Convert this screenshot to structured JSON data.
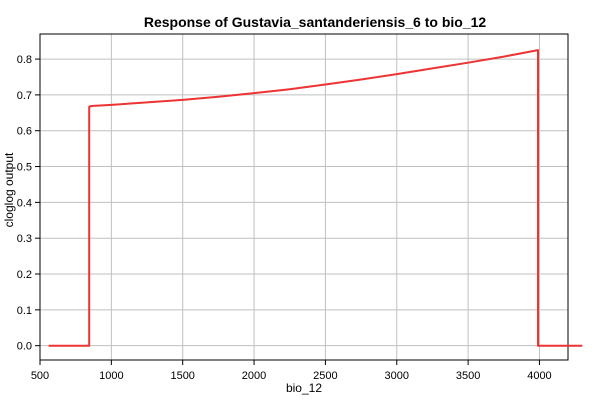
{
  "chart_data": {
    "type": "line",
    "title": "Response of Gustavia_santanderiensis_6 to bio_12",
    "xlabel": "bio_12",
    "ylabel": "cloglog output",
    "xlim": [
      500,
      4200
    ],
    "ylim": [
      -0.04,
      0.87
    ],
    "xticks": [
      500,
      1000,
      1500,
      2000,
      2500,
      3000,
      3500,
      4000
    ],
    "yticks": [
      0.0,
      0.1,
      0.2,
      0.3,
      0.4,
      0.5,
      0.6,
      0.7,
      0.8
    ],
    "grid": true,
    "line_color": "#ee3333",
    "series": [
      {
        "x": [
          560,
          845,
          845,
          860,
          1000,
          1250,
          1500,
          1750,
          2000,
          2250,
          2500,
          2750,
          3000,
          3250,
          3500,
          3750,
          3990,
          3990,
          4300
        ],
        "y": [
          0.0,
          0.0,
          0.667,
          0.669,
          0.672,
          0.679,
          0.686,
          0.695,
          0.705,
          0.716,
          0.729,
          0.743,
          0.758,
          0.774,
          0.79,
          0.807,
          0.825,
          0.0,
          0.0
        ]
      }
    ]
  }
}
